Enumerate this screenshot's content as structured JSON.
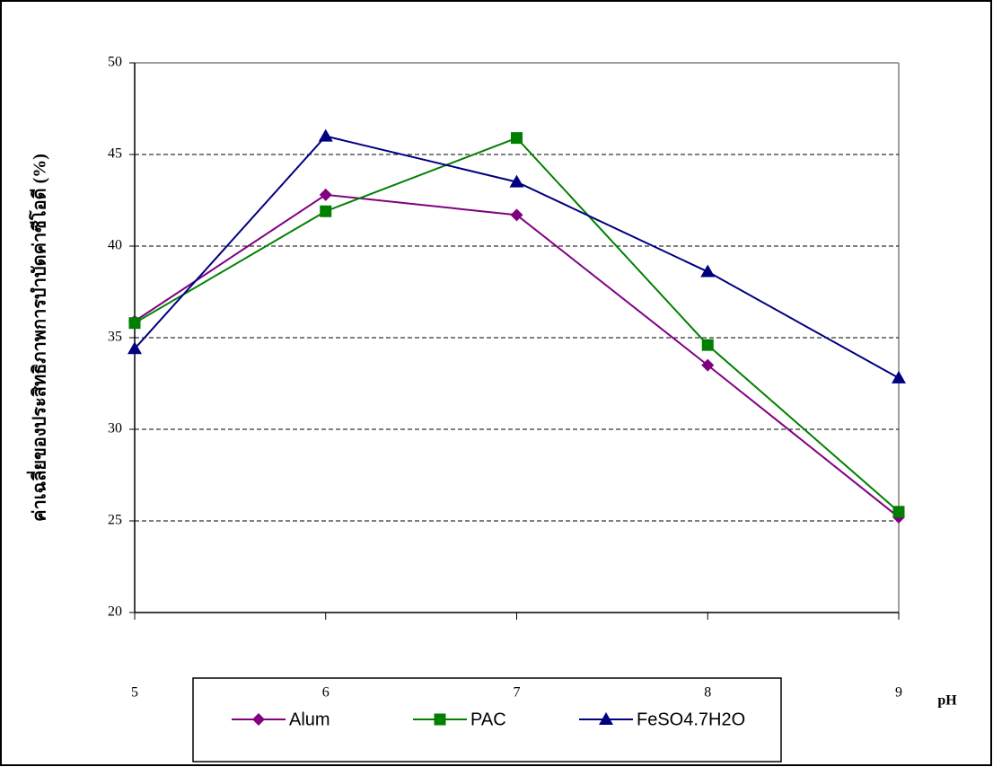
{
  "chart_data": {
    "type": "line",
    "y_label": "ค่าเฉลี่ยของประสิทธิภาพการบำบัดค่าซีโอดี (%)",
    "x_label": "pH",
    "x": [
      5,
      6,
      7,
      8,
      9
    ],
    "xlim": [
      5,
      9
    ],
    "xticks": [
      5,
      6,
      7,
      8,
      9
    ],
    "ylim": [
      20,
      50
    ],
    "yticks": [
      20,
      25,
      30,
      35,
      40,
      45,
      50
    ],
    "grid": true,
    "legend": "bottom",
    "series": [
      {
        "name": "Alum",
        "color": "#800080",
        "marker": "diamond",
        "values": [
          35.9,
          42.8,
          41.7,
          33.5,
          25.2
        ]
      },
      {
        "name": "PAC",
        "color": "#008000",
        "marker": "square",
        "values": [
          35.8,
          41.9,
          45.9,
          34.6,
          25.5
        ]
      },
      {
        "name": "FeSO4.7H2O",
        "color": "#000080",
        "marker": "triangle",
        "values": [
          34.4,
          46.0,
          43.5,
          38.6,
          32.8
        ]
      }
    ]
  }
}
